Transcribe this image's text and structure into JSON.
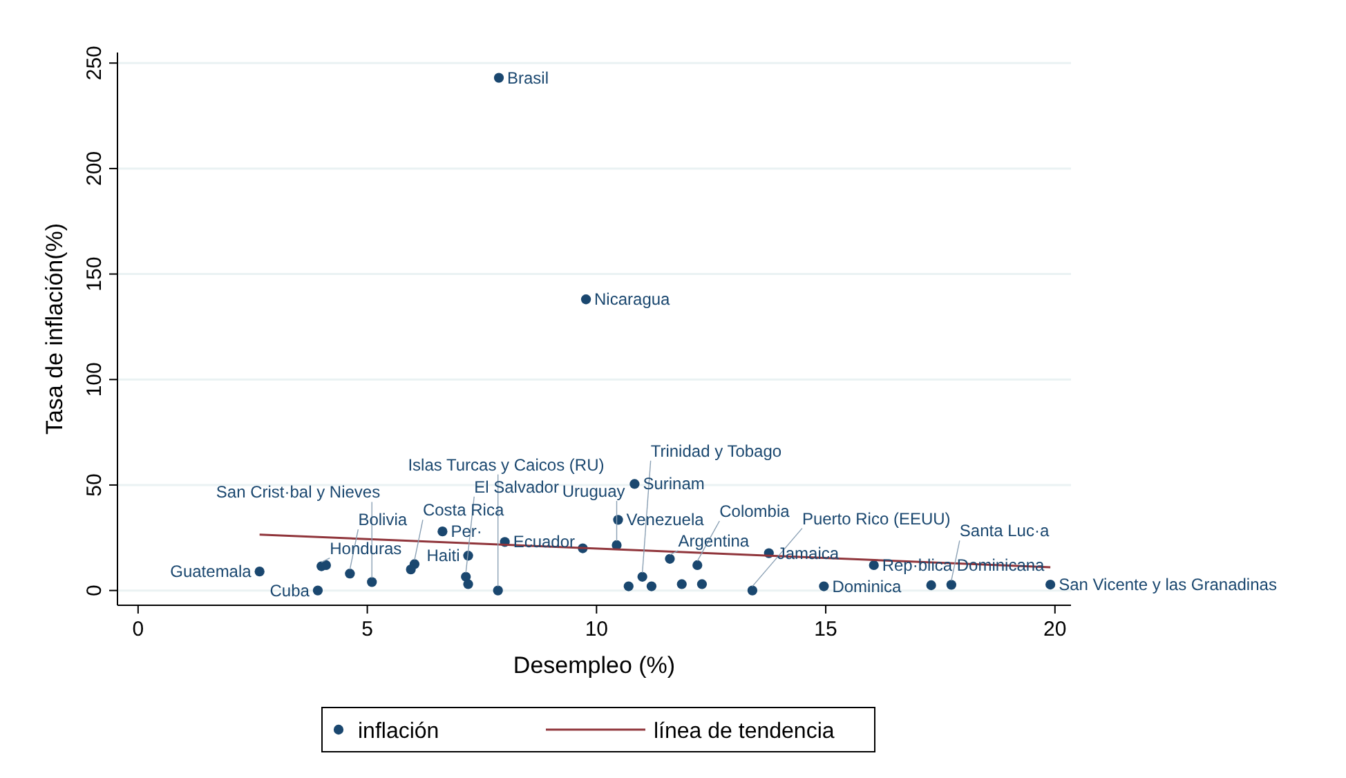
{
  "chart_data": {
    "type": "scatter",
    "xlabel": "Desempleo (%)",
    "ylabel": "Tasa de inflación(%)",
    "xlim": [
      -0.45,
      20.35
    ],
    "ylim": [
      -7,
      255
    ],
    "xticks": [
      0,
      5,
      10,
      15,
      20
    ],
    "yticks": [
      0,
      50,
      100,
      150,
      200,
      250
    ],
    "grid": "y",
    "legend": "bottom",
    "series": [
      {
        "name": "inflación",
        "color": "#1a476f",
        "marker": "circle",
        "x": [
          7.87,
          9.77,
          10.83,
          10.47,
          6.64,
          8.0,
          9.7,
          10.44,
          7.2,
          13.76,
          11.6,
          12.2,
          16.05,
          2.65,
          4.0,
          4.1,
          4.62,
          6.03,
          5.95,
          3.92,
          5.1,
          7.15,
          7.2,
          7.85,
          11.0,
          11.2,
          11.86,
          13.4,
          14.96,
          17.3,
          17.74,
          19.9,
          10.7,
          12.3
        ],
        "values": [
          243,
          138,
          50.5,
          33.5,
          28,
          23,
          20,
          21.5,
          16.5,
          17.7,
          15,
          12,
          12,
          9,
          11.5,
          12,
          8,
          12.5,
          10,
          0,
          4,
          6.5,
          3,
          0,
          6.5,
          2,
          3,
          0,
          2,
          2.5,
          2.7,
          2.8,
          2,
          3
        ]
      },
      {
        "name": "línea de tendencia",
        "type": "line",
        "color": "#90353b",
        "x": [
          2.65,
          19.9
        ],
        "values": [
          26.5,
          11
        ]
      }
    ],
    "annotations": [
      {
        "text": "Brasil",
        "x": 7.87,
        "y": 243
      },
      {
        "text": "Nicaragua",
        "x": 9.77,
        "y": 138
      },
      {
        "text": "Surinam",
        "x": 10.83,
        "y": 50.5
      },
      {
        "text": "Venezuela",
        "x": 10.47,
        "y": 33.5
      },
      {
        "text": "Per·",
        "x": 6.64,
        "y": 28
      },
      {
        "text": "Ecuador",
        "x": 8.0,
        "y": 23
      },
      {
        "text": "Uruguay",
        "x": 10.44,
        "y": 21.5
      },
      {
        "text": "Haiti",
        "x": 7.2,
        "y": 16.5
      },
      {
        "text": "Jamaica",
        "x": 13.76,
        "y": 17.7
      },
      {
        "text": "Argentina",
        "x": 11.6,
        "y": 15
      },
      {
        "text": "Colombia",
        "x": 12.2,
        "y": 12
      },
      {
        "text": "Rep·blica Dominicana",
        "x": 16.05,
        "y": 12
      },
      {
        "text": "Guatemala",
        "x": 2.65,
        "y": 9
      },
      {
        "text": "Honduras",
        "x": 4.0,
        "y": 11.5
      },
      {
        "text": "Bolivia",
        "x": 4.62,
        "y": 8
      },
      {
        "text": "Costa Rica",
        "x": 6.03,
        "y": 12.5
      },
      {
        "text": "Cuba",
        "x": 3.92,
        "y": 0
      },
      {
        "text": "San Crist·bal y Nieves",
        "x": 5.1,
        "y": 4
      },
      {
        "text": "El Salvador",
        "x": 7.15,
        "y": 6.5
      },
      {
        "text": "Islas Turcas y Caicos (RU)",
        "x": 7.85,
        "y": 0
      },
      {
        "text": "Trinidad y Tobago",
        "x": 11.0,
        "y": 6.5
      },
      {
        "text": "Puerto Rico (EEUU)",
        "x": 13.4,
        "y": 0
      },
      {
        "text": "Dominica",
        "x": 14.96,
        "y": 2
      },
      {
        "text": "Santa Luc·a",
        "x": 17.74,
        "y": 2.7
      },
      {
        "text": "San Vicente y las Granadinas",
        "x": 19.9,
        "y": 2.8
      }
    ]
  }
}
